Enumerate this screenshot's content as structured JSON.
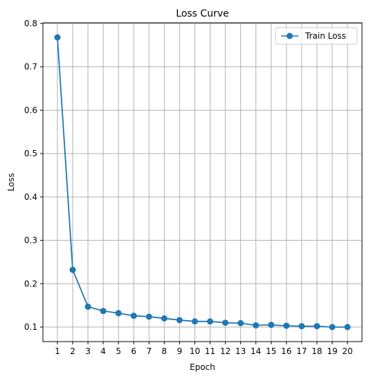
{
  "chart_data": {
    "type": "line",
    "title": "Loss Curve",
    "xlabel": "Epoch",
    "ylabel": "Loss",
    "x": [
      1,
      2,
      3,
      4,
      5,
      6,
      7,
      8,
      9,
      10,
      11,
      12,
      13,
      14,
      15,
      16,
      17,
      18,
      19,
      20
    ],
    "x_ticks": [
      1,
      2,
      3,
      4,
      5,
      6,
      7,
      8,
      9,
      10,
      11,
      12,
      13,
      14,
      15,
      16,
      17,
      18,
      19,
      20
    ],
    "y_ticks": [
      0.1,
      0.2,
      0.3,
      0.4,
      0.5,
      0.6,
      0.7,
      0.8
    ],
    "xlim": [
      0.05,
      20.95
    ],
    "ylim": [
      0.0665,
      0.8015
    ],
    "grid": true,
    "legend_position": "top-right",
    "series": [
      {
        "name": "Train Loss",
        "color": "#1f77b4",
        "marker": "circle",
        "values": [
          0.768,
          0.232,
          0.147,
          0.137,
          0.132,
          0.126,
          0.124,
          0.12,
          0.116,
          0.113,
          0.113,
          0.11,
          0.109,
          0.104,
          0.105,
          0.103,
          0.102,
          0.102,
          0.1,
          0.1
        ]
      }
    ]
  }
}
